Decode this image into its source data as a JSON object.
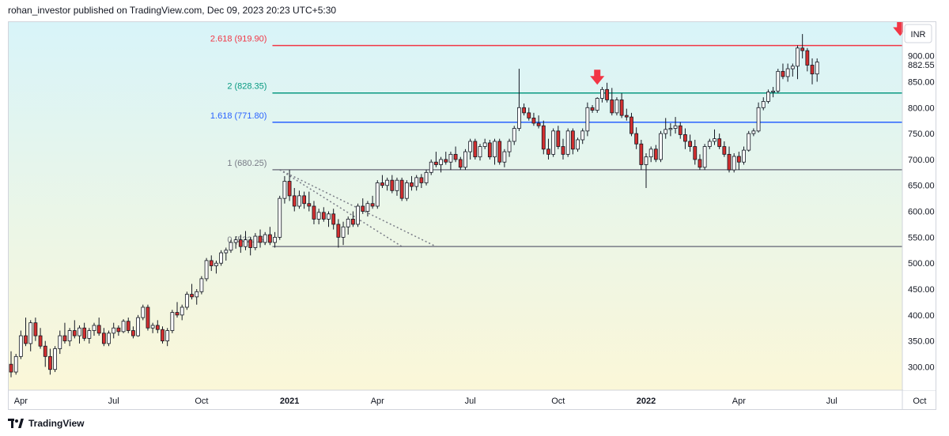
{
  "header": {
    "text": "rohan_investor published on TradingView.com, Dec 09, 2023 20:23 UTC+5:30"
  },
  "footer": {
    "brand": "TradingView",
    "logo_icon": "tradingview-logo-icon"
  },
  "chart_data": {
    "type": "candlestick",
    "currency": "INR",
    "last_price": "882.55",
    "ylim": [
      255,
      965
    ],
    "y_ticks": [
      "300.00",
      "350.00",
      "400.00",
      "450.00",
      "500.00",
      "550.00",
      "600.00",
      "650.00",
      "700.00",
      "750.00",
      "800.00",
      "850.00",
      "900.00"
    ],
    "x_ticks": [
      "Apr",
      "Jul",
      "Oct",
      "2021",
      "Apr",
      "Jul",
      "Oct",
      "2022",
      "Apr",
      "Jul",
      "Oct"
    ],
    "x_ticks_bold": [
      "2021",
      "2022"
    ],
    "colors": {
      "up": "#ffffff",
      "down": "#d32f2f",
      "wick": "#131722",
      "bg_top": "#d8f4f9",
      "bg_bottom": "#fbf7d8"
    },
    "fib_levels": [
      {
        "label": "2.618 (919.90)",
        "value": 919.9,
        "color": "#f23645"
      },
      {
        "label": "2 (828.35)",
        "value": 828.35,
        "color": "#089981"
      },
      {
        "label": "1.618 (771.80)",
        "value": 771.8,
        "color": "#2962ff"
      },
      {
        "label": "1 (680.25)",
        "value": 680.25,
        "color": "#787b86"
      },
      {
        "label": "0 (532.15)",
        "value": 532.15,
        "color": "#787b86"
      }
    ],
    "down_arrows": [
      {
        "week": 120,
        "price": 858
      },
      {
        "week": 182,
        "price": 952
      }
    ],
    "dotted_trendlines": [
      {
        "from": [
          55,
          680.25
        ],
        "to": [
          80,
          532.15
        ]
      },
      {
        "from": [
          55,
          680.25
        ],
        "to": [
          87,
          532.15
        ]
      }
    ],
    "tick_weeks": [
      2,
      21,
      39,
      57,
      75,
      94,
      112,
      130,
      149,
      168,
      186
    ],
    "candles": [
      [
        0,
        305,
        330,
        280,
        290
      ],
      [
        1,
        290,
        325,
        285,
        320
      ],
      [
        2,
        320,
        370,
        315,
        360
      ],
      [
        3,
        360,
        395,
        340,
        345
      ],
      [
        4,
        345,
        390,
        330,
        385
      ],
      [
        5,
        385,
        395,
        350,
        360
      ],
      [
        6,
        360,
        375,
        335,
        340
      ],
      [
        7,
        340,
        350,
        300,
        320
      ],
      [
        8,
        320,
        335,
        285,
        295
      ],
      [
        9,
        295,
        340,
        290,
        335
      ],
      [
        10,
        335,
        370,
        325,
        360
      ],
      [
        11,
        360,
        385,
        345,
        350
      ],
      [
        12,
        350,
        375,
        340,
        370
      ],
      [
        13,
        370,
        390,
        355,
        360
      ],
      [
        14,
        360,
        380,
        345,
        375
      ],
      [
        15,
        375,
        385,
        350,
        355
      ],
      [
        16,
        355,
        375,
        345,
        370
      ],
      [
        17,
        370,
        385,
        360,
        380
      ],
      [
        18,
        380,
        395,
        360,
        365
      ],
      [
        19,
        365,
        375,
        340,
        345
      ],
      [
        20,
        345,
        370,
        340,
        365
      ],
      [
        21,
        365,
        385,
        355,
        375
      ],
      [
        22,
        375,
        380,
        360,
        368
      ],
      [
        23,
        368,
        392,
        365,
        388
      ],
      [
        24,
        388,
        395,
        365,
        370
      ],
      [
        25,
        370,
        378,
        355,
        360
      ],
      [
        26,
        360,
        400,
        358,
        395
      ],
      [
        27,
        395,
        420,
        390,
        415
      ],
      [
        28,
        415,
        420,
        370,
        375
      ],
      [
        29,
        375,
        385,
        365,
        380
      ],
      [
        30,
        380,
        390,
        365,
        372
      ],
      [
        31,
        372,
        378,
        345,
        350
      ],
      [
        32,
        350,
        375,
        340,
        370
      ],
      [
        33,
        370,
        410,
        365,
        405
      ],
      [
        34,
        405,
        425,
        395,
        400
      ],
      [
        35,
        400,
        420,
        390,
        415
      ],
      [
        36,
        415,
        445,
        410,
        440
      ],
      [
        37,
        440,
        460,
        430,
        435
      ],
      [
        38,
        435,
        450,
        420,
        445
      ],
      [
        39,
        445,
        475,
        440,
        470
      ],
      [
        40,
        470,
        510,
        465,
        505
      ],
      [
        41,
        505,
        515,
        485,
        495
      ],
      [
        42,
        495,
        505,
        480,
        500
      ],
      [
        43,
        500,
        525,
        495,
        520
      ],
      [
        44,
        520,
        530,
        505,
        525
      ],
      [
        45,
        525,
        545,
        520,
        540
      ],
      [
        46,
        540,
        552,
        528,
        545
      ],
      [
        47,
        545,
        555,
        520,
        532
      ],
      [
        48,
        532,
        562,
        525,
        545
      ],
      [
        49,
        545,
        550,
        515,
        530
      ],
      [
        50,
        530,
        558,
        525,
        552
      ],
      [
        51,
        552,
        565,
        530,
        540
      ],
      [
        52,
        540,
        560,
        535,
        555
      ],
      [
        53,
        555,
        570,
        535,
        540
      ],
      [
        54,
        540,
        560,
        530,
        550
      ],
      [
        55,
        550,
        630,
        545,
        625
      ],
      [
        56,
        625,
        668,
        615,
        658
      ],
      [
        57,
        658,
        680,
        620,
        630
      ],
      [
        58,
        630,
        645,
        600,
        610
      ],
      [
        59,
        610,
        640,
        605,
        630
      ],
      [
        60,
        630,
        638,
        605,
        615
      ],
      [
        61,
        615,
        638,
        600,
        610
      ],
      [
        62,
        610,
        620,
        575,
        585
      ],
      [
        63,
        585,
        605,
        575,
        598
      ],
      [
        64,
        598,
        608,
        580,
        585
      ],
      [
        65,
        585,
        600,
        570,
        595
      ],
      [
        66,
        595,
        605,
        565,
        575
      ],
      [
        67,
        575,
        585,
        530,
        550
      ],
      [
        68,
        550,
        580,
        535,
        570
      ],
      [
        69,
        570,
        590,
        555,
        585
      ],
      [
        70,
        585,
        600,
        570,
        575
      ],
      [
        71,
        575,
        615,
        570,
        610
      ],
      [
        72,
        610,
        625,
        595,
        600
      ],
      [
        73,
        600,
        620,
        590,
        615
      ],
      [
        74,
        615,
        630,
        605,
        610
      ],
      [
        75,
        610,
        660,
        605,
        655
      ],
      [
        76,
        655,
        670,
        645,
        650
      ],
      [
        77,
        650,
        665,
        640,
        660
      ],
      [
        78,
        660,
        670,
        635,
        640
      ],
      [
        79,
        640,
        665,
        630,
        660
      ],
      [
        80,
        660,
        665,
        620,
        625
      ],
      [
        81,
        625,
        660,
        620,
        655
      ],
      [
        82,
        655,
        668,
        640,
        648
      ],
      [
        83,
        648,
        670,
        640,
        665
      ],
      [
        84,
        665,
        672,
        645,
        655
      ],
      [
        85,
        655,
        680,
        650,
        675
      ],
      [
        86,
        675,
        700,
        670,
        695
      ],
      [
        87,
        695,
        715,
        685,
        690
      ],
      [
        88,
        690,
        705,
        675,
        700
      ],
      [
        89,
        700,
        715,
        690,
        695
      ],
      [
        90,
        695,
        715,
        680,
        710
      ],
      [
        91,
        710,
        725,
        695,
        700
      ],
      [
        92,
        700,
        705,
        680,
        685
      ],
      [
        93,
        685,
        720,
        680,
        715
      ],
      [
        94,
        715,
        740,
        700,
        735
      ],
      [
        95,
        735,
        740,
        700,
        705
      ],
      [
        96,
        705,
        730,
        698,
        725
      ],
      [
        97,
        725,
        740,
        720,
        732
      ],
      [
        98,
        732,
        738,
        700,
        705
      ],
      [
        99,
        705,
        740,
        690,
        735
      ],
      [
        100,
        735,
        740,
        690,
        695
      ],
      [
        101,
        695,
        720,
        685,
        715
      ],
      [
        102,
        715,
        740,
        705,
        735
      ],
      [
        103,
        735,
        765,
        728,
        760
      ],
      [
        104,
        760,
        875,
        755,
        800
      ],
      [
        105,
        800,
        808,
        785,
        790
      ],
      [
        106,
        790,
        800,
        775,
        780
      ],
      [
        107,
        780,
        790,
        765,
        770
      ],
      [
        108,
        770,
        785,
        760,
        765
      ],
      [
        109,
        765,
        775,
        710,
        720
      ],
      [
        110,
        720,
        740,
        700,
        710
      ],
      [
        111,
        710,
        760,
        705,
        755
      ],
      [
        112,
        755,
        765,
        720,
        725
      ],
      [
        113,
        725,
        740,
        700,
        710
      ],
      [
        114,
        710,
        760,
        705,
        755
      ],
      [
        115,
        755,
        760,
        710,
        720
      ],
      [
        116,
        720,
        742,
        715,
        738
      ],
      [
        117,
        738,
        760,
        730,
        755
      ],
      [
        118,
        755,
        810,
        745,
        800
      ],
      [
        119,
        800,
        805,
        790,
        795
      ],
      [
        120,
        795,
        820,
        790,
        818
      ],
      [
        121,
        818,
        840,
        810,
        835
      ],
      [
        122,
        835,
        848,
        810,
        815
      ],
      [
        123,
        815,
        838,
        785,
        790
      ],
      [
        124,
        790,
        820,
        785,
        815
      ],
      [
        125,
        815,
        828,
        780,
        785
      ],
      [
        126,
        785,
        798,
        775,
        782
      ],
      [
        127,
        782,
        790,
        745,
        750
      ],
      [
        128,
        750,
        762,
        720,
        730
      ],
      [
        129,
        730,
        738,
        680,
        690
      ],
      [
        130,
        690,
        712,
        645,
        705
      ],
      [
        131,
        705,
        725,
        695,
        720
      ],
      [
        132,
        720,
        728,
        695,
        700
      ],
      [
        133,
        700,
        755,
        695,
        750
      ],
      [
        134,
        750,
        780,
        740,
        758
      ],
      [
        135,
        758,
        770,
        745,
        760
      ],
      [
        136,
        760,
        782,
        750,
        765
      ],
      [
        137,
        765,
        772,
        740,
        748
      ],
      [
        138,
        748,
        760,
        720,
        735
      ],
      [
        139,
        735,
        748,
        715,
        725
      ],
      [
        140,
        725,
        738,
        690,
        700
      ],
      [
        141,
        700,
        710,
        680,
        685
      ],
      [
        142,
        685,
        730,
        680,
        725
      ],
      [
        143,
        725,
        740,
        720,
        735
      ],
      [
        144,
        735,
        758,
        728,
        740
      ],
      [
        145,
        740,
        750,
        720,
        725
      ],
      [
        146,
        725,
        735,
        705,
        710
      ],
      [
        147,
        710,
        725,
        675,
        680
      ],
      [
        148,
        680,
        712,
        675,
        706
      ],
      [
        149,
        706,
        715,
        680,
        695
      ],
      [
        150,
        695,
        725,
        690,
        718
      ],
      [
        151,
        718,
        755,
        715,
        750
      ],
      [
        152,
        750,
        760,
        745,
        755
      ],
      [
        153,
        755,
        810,
        752,
        800
      ],
      [
        154,
        800,
        820,
        795,
        812
      ],
      [
        155,
        812,
        835,
        808,
        830
      ],
      [
        156,
        830,
        840,
        820,
        832
      ],
      [
        157,
        832,
        875,
        828,
        870
      ],
      [
        158,
        870,
        885,
        855,
        860
      ],
      [
        159,
        860,
        885,
        850,
        875
      ],
      [
        160,
        875,
        885,
        860,
        880
      ],
      [
        161,
        880,
        920,
        855,
        915
      ],
      [
        162,
        915,
        942,
        895,
        910
      ],
      [
        163,
        910,
        915,
        870,
        882
      ],
      [
        164,
        882,
        895,
        845,
        865
      ],
      [
        165,
        865,
        895,
        850,
        888
      ]
    ]
  }
}
